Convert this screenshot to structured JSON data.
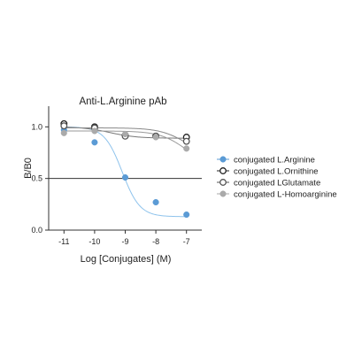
{
  "chart_data": {
    "type": "scatter",
    "title": "Anti-L.Arginine pAb",
    "xlabel": "Log [Conjugates] (M)",
    "ylabel": "B/B0",
    "x_ticks": [
      -11,
      -10,
      -9,
      -8,
      -7
    ],
    "x_tick_labels": [
      "-11",
      "-10",
      "-9",
      "-8",
      "-7"
    ],
    "y_ticks": [
      0.0,
      0.5,
      1.0
    ],
    "y_tick_labels": [
      "0.0",
      "0.5",
      "1.0"
    ],
    "xlim": [
      -11.5,
      -6.5
    ],
    "ylim": [
      0.0,
      1.2
    ],
    "reference_line_y": 0.5,
    "grid": false,
    "legend_position": "right",
    "series": [
      {
        "name": "conjugated L.Arginine",
        "marker": "filled-circle",
        "color": "#5b9bd5",
        "x": [
          -11,
          -10,
          -9,
          -8,
          -7
        ],
        "y": [
          0.97,
          0.85,
          0.51,
          0.27,
          0.15
        ],
        "fit": {
          "top": 1.0,
          "bottom": 0.13,
          "logIC50": -9.1,
          "hill": 1.5
        }
      },
      {
        "name": "conjugated L.Ornithine",
        "marker": "open-circle",
        "color": "#222222",
        "x": [
          -11,
          -10,
          -9,
          -8,
          -7
        ],
        "y": [
          1.03,
          1.0,
          0.92,
          0.91,
          0.9
        ],
        "fit": {
          "top": 1.0,
          "bottom": 0.89,
          "logIC50": -9.5,
          "hill": 1.0
        }
      },
      {
        "name": "conjugated LGlutamate",
        "marker": "open-circle",
        "color": "#555555",
        "x": [
          -11,
          -10,
          -9,
          -8,
          -7
        ],
        "y": [
          1.01,
          0.99,
          0.91,
          0.91,
          0.86
        ],
        "fit": {
          "top": 0.99,
          "bottom": 0.7,
          "logIC50": -7.0,
          "hill": 1.0
        }
      },
      {
        "name": "conjugated L-Homoarginine",
        "marker": "filled-circle",
        "color": "#aaaaaa",
        "x": [
          -11,
          -10,
          -9,
          -8,
          -7
        ],
        "y": [
          0.94,
          0.96,
          0.93,
          0.9,
          0.79
        ],
        "fit": {
          "top": 0.96,
          "bottom": 0.6,
          "logIC50": -7.0,
          "hill": 1.0
        }
      }
    ]
  }
}
